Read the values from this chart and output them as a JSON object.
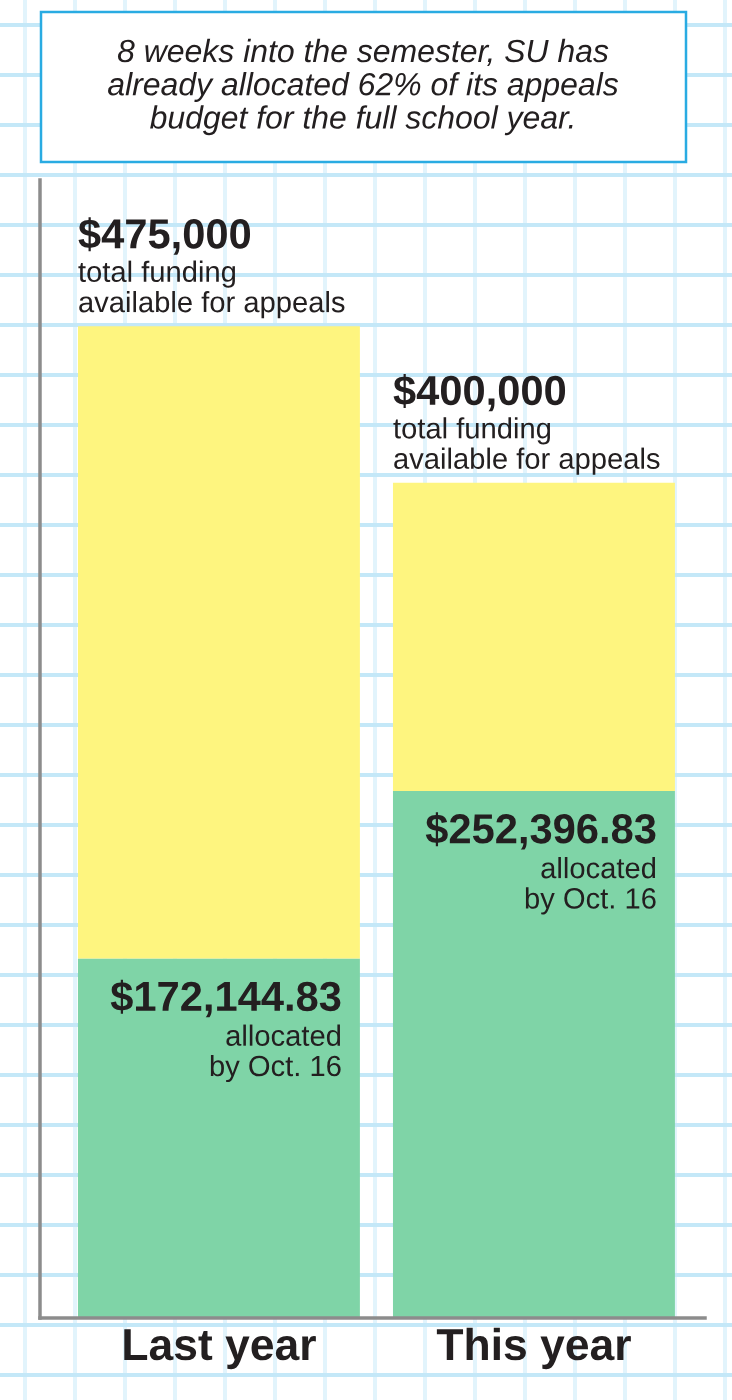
{
  "chart_data": {
    "type": "bar",
    "title": "8 weeks into the semester, SU has\nalready allocated 62% of its appeals\nbudget for the full school year.",
    "categories": [
      "Last year",
      "This year"
    ],
    "stacked": true,
    "series": [
      {
        "color": "#7fd4a7",
        "values": [
          172144.83,
          252396.83
        ],
        "value_labels": [
          "$172,144.83",
          "$252,396.83"
        ]
      },
      {
        "color": "#fef57f",
        "values": [
          302855.17,
          147603.17
        ]
      }
    ],
    "totals": [
      "$475,000",
      "$400,000"
    ],
    "annotations": [
      {
        "text": "total funding\navailable for appeals",
        "x": "Last year",
        "y": 475000
      },
      {
        "text": "total funding\navailable for appeals",
        "x": "This year",
        "y": 400000
      },
      {
        "text": "allocated\nby Oct. 16",
        "x": "Last year",
        "y": 172144.83
      },
      {
        "text": "allocated\nby Oct. 16",
        "x": "This year",
        "y": 252396.83
      }
    ],
    "ylim": [
      0,
      545000
    ],
    "tick_labels": "x"
  }
}
